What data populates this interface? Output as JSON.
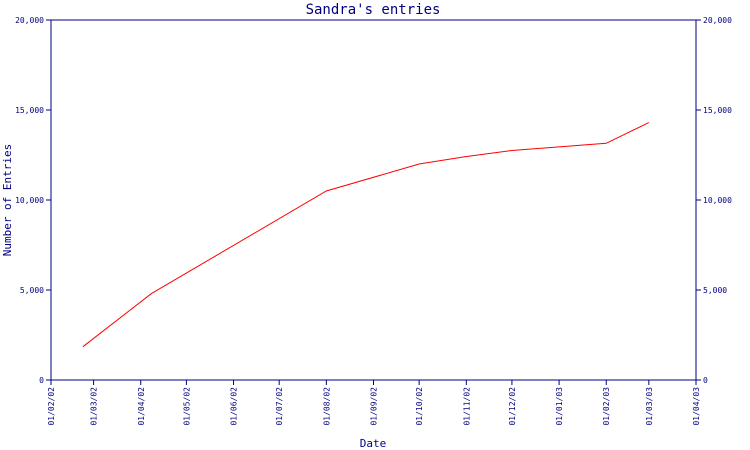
{
  "chart_data": {
    "type": "line",
    "title": "Sandra's entries",
    "xlabel": "Date",
    "ylabel": "Number of Entries",
    "x_ticks": [
      "01/02/02",
      "01/03/02",
      "01/04/02",
      "01/05/02",
      "01/06/02",
      "01/07/02",
      "01/08/02",
      "01/09/02",
      "01/10/02",
      "01/11/02",
      "01/12/02",
      "01/01/03",
      "01/02/03",
      "01/03/03",
      "01/04/03"
    ],
    "y_ticks": [
      "0",
      "5,000",
      "10,000",
      "15,000",
      "20,000"
    ],
    "ylim": [
      0,
      20000
    ],
    "xlim": [
      "2002-02-01",
      "2003-04-01"
    ],
    "series": [
      {
        "color": "#ff0000",
        "points": [
          {
            "x": "2002-02-22",
            "y": 1850
          },
          {
            "x": "2002-04-08",
            "y": 4800
          },
          {
            "x": "2002-08-01",
            "y": 10500
          },
          {
            "x": "2002-10-01",
            "y": 12000
          },
          {
            "x": "2002-10-31",
            "y": 12400
          },
          {
            "x": "2002-12-01",
            "y": 12750
          },
          {
            "x": "2003-02-01",
            "y": 13150
          },
          {
            "x": "2003-03-01",
            "y": 14300
          }
        ]
      }
    ],
    "grid": false,
    "right_axis": true
  },
  "colors": {
    "axis": "#000080",
    "text": "#000080",
    "background": "#ffffff"
  }
}
